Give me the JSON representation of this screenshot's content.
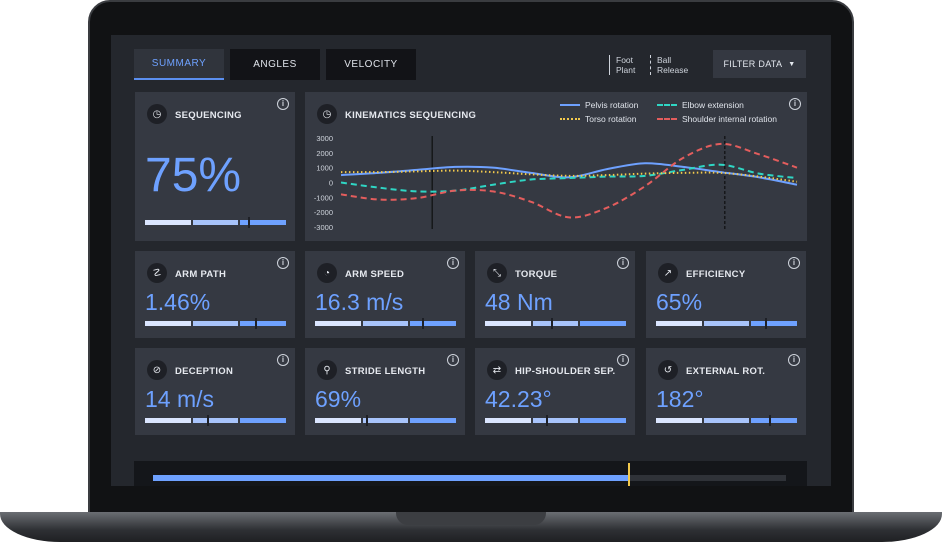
{
  "tabs": [
    {
      "label": "SUMMARY",
      "active": true
    },
    {
      "label": "ANGLES",
      "active": false
    },
    {
      "label": "VELOCITY",
      "active": false
    }
  ],
  "markers": {
    "foot_plant": [
      "Foot",
      "Plant"
    ],
    "ball_release": [
      "Ball",
      "Release"
    ]
  },
  "filter": {
    "label": "FILTER DATA",
    "icon": "caret-down-icon"
  },
  "sequencing": {
    "title": "SEQUENCING",
    "value": "75%",
    "icon": "clock-icon",
    "bar_fill": 0.73
  },
  "kinematics": {
    "title": "KINEMATICS SEQUENCING",
    "icon": "clock-icon"
  },
  "chart_data": {
    "type": "line",
    "title": "KINEMATICS SEQUENCING",
    "ylim": [
      -3000,
      3000
    ],
    "yticks": [
      "3000",
      "2000",
      "1000",
      "0",
      "-1000",
      "-2000",
      "-3000"
    ],
    "x": [
      0,
      1,
      2,
      3,
      4,
      5,
      6,
      7,
      8,
      9,
      10,
      11,
      12
    ],
    "series": [
      {
        "name": "Pelvis rotation",
        "color": "#6ea1ff",
        "style": "solid",
        "values": [
          500,
          650,
          850,
          1050,
          1000,
          650,
          350,
          900,
          1300,
          1050,
          700,
          350,
          -150
        ]
      },
      {
        "name": "Elbow extension",
        "color": "#2fd6c4",
        "style": "dashed",
        "values": [
          0,
          -350,
          -600,
          -550,
          -150,
          200,
          300,
          400,
          450,
          850,
          1200,
          600,
          300
        ]
      },
      {
        "name": "Torso rotation",
        "color": "#f2c94c",
        "style": "dotted",
        "values": [
          700,
          700,
          750,
          800,
          700,
          550,
          450,
          500,
          600,
          650,
          650,
          400,
          50
        ]
      },
      {
        "name": "Shoulder internal rotation",
        "color": "#e35d5d",
        "style": "dashed",
        "values": [
          -800,
          -1150,
          -1050,
          -550,
          -600,
          -1300,
          -2350,
          -1700,
          -250,
          1650,
          2600,
          1900,
          1000
        ]
      }
    ],
    "foot_plant_x": 2.4,
    "ball_release_x": 10.1
  },
  "metrics": [
    {
      "title": "ARM PATH",
      "value": "1.46%",
      "icon": "arm-path-icon",
      "glyph": "☡",
      "bar_fill": 0.78
    },
    {
      "title": "ARM SPEED",
      "value": "16.3 m/s",
      "icon": "speedometer-icon",
      "glyph": "◔",
      "bar_fill": 0.76
    },
    {
      "title": "TORQUE",
      "value": "48 Nm",
      "icon": "torque-icon",
      "glyph": "⤡",
      "bar_fill": 0.47
    },
    {
      "title": "EFFICIENCY",
      "value": "65%",
      "icon": "trending-up-icon",
      "glyph": "↗",
      "bar_fill": 0.77
    },
    {
      "title": "DECEPTION",
      "value": "14 m/s",
      "icon": "eye-off-icon",
      "glyph": "⊘",
      "bar_fill": 0.44
    },
    {
      "title": "STRIDE LENGTH",
      "value": "69%",
      "icon": "running-icon",
      "glyph": "⚲",
      "bar_fill": 0.36
    },
    {
      "title": "HIP-SHOULDER SEP.",
      "value": "42.23°",
      "icon": "rotate-arrows-icon",
      "glyph": "⇄",
      "bar_fill": 0.43
    },
    {
      "title": "EXTERNAL ROT.",
      "value": "182°",
      "icon": "rotate-ccw-icon",
      "glyph": "↺",
      "bar_fill": 0.8
    }
  ],
  "timeline": {
    "progress": 0.75
  }
}
